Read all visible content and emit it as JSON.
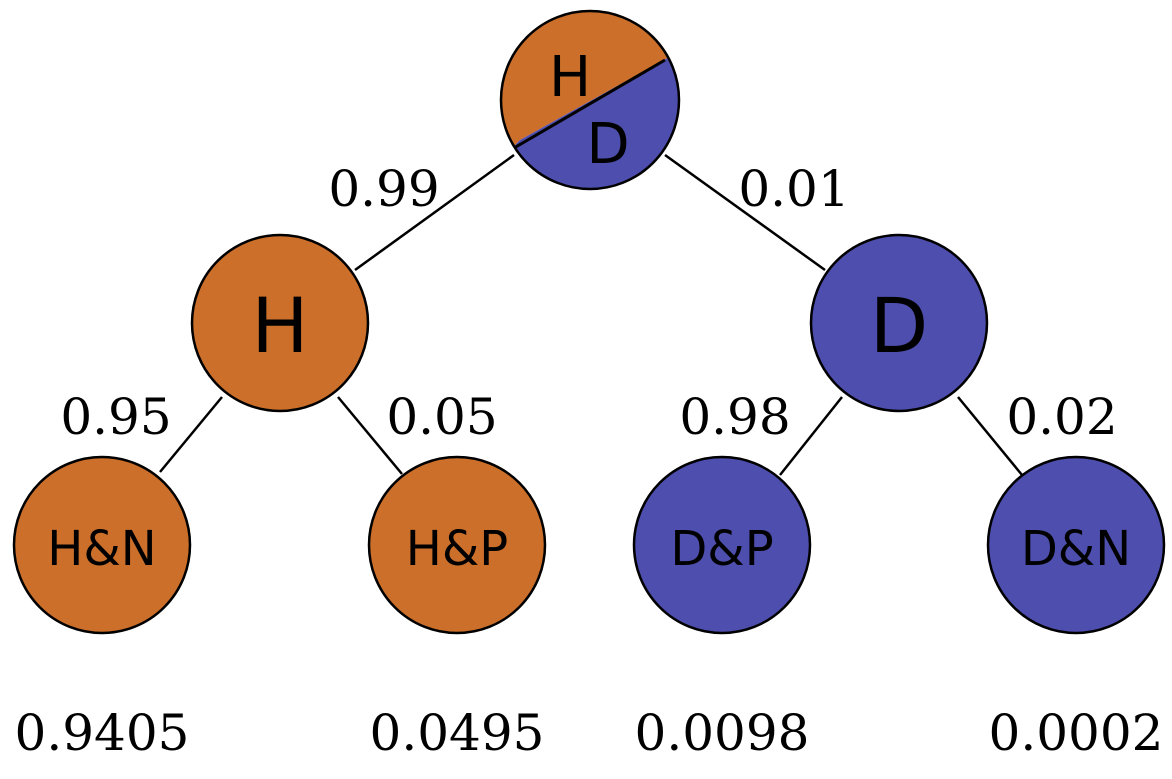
{
  "colors": {
    "healthy": "#CB6F2A",
    "disease": "#4E4EAE",
    "line": "#000000"
  },
  "root": {
    "top_label": "H",
    "bottom_label": "D"
  },
  "level1": {
    "left": {
      "label": "H",
      "edge_prob": "0.99"
    },
    "right": {
      "label": "D",
      "edge_prob": "0.01"
    }
  },
  "leaves": [
    {
      "label": "H&N",
      "edge_prob": "0.95",
      "outcome": "0.9405"
    },
    {
      "label": "H&P",
      "edge_prob": "0.05",
      "outcome": "0.0495"
    },
    {
      "label": "D&P",
      "edge_prob": "0.98",
      "outcome": "0.0098"
    },
    {
      "label": "D&N",
      "edge_prob": "0.02",
      "outcome": "0.0002"
    }
  ]
}
